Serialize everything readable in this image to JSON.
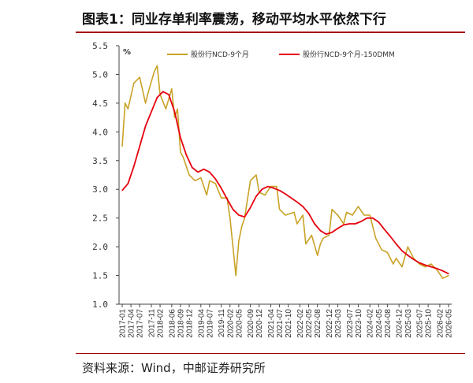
{
  "header": {
    "title": "图表1：同业存单利率震荡，移动平均水平依然下行"
  },
  "footer": {
    "source": "资料来源：Wind，中邮证券研究所"
  },
  "chart_data": {
    "type": "line",
    "title": "图表1：同业存单利率震荡，移动平均水平依然下行",
    "ylabel": "%",
    "ylim": [
      1.0,
      5.5
    ],
    "yticks": [
      "1.0",
      "1.5",
      "2.0",
      "2.5",
      "3.0",
      "3.5",
      "4.0",
      "4.5",
      "5.0",
      "5.5"
    ],
    "grid": false,
    "legend_position": "top",
    "x_categories": [
      "2017-01",
      "2017-04",
      "2017-07",
      "2017-11",
      "2018-02",
      "2018-06",
      "2018-09",
      "2018-12",
      "2019-04",
      "2019-07",
      "2019-11",
      "2020-02",
      "2020-05",
      "2020-09",
      "2020-12",
      "2021-04",
      "2021-07",
      "2021-10",
      "2022-02",
      "2022-05",
      "2022-08",
      "2022-12",
      "2023-03",
      "2023-07",
      "2023-10",
      "2024-02",
      "2024-05",
      "2024-08",
      "2024-12",
      "2025-03",
      "2025-07",
      "2025-10",
      "2026-02",
      "2026-05"
    ],
    "series": [
      {
        "name": "股份行NCD-9个月",
        "color": "#c9a227",
        "x": [
          "2017-01",
          "2017-02",
          "2017-03",
          "2017-05",
          "2017-07",
          "2017-09",
          "2017-10",
          "2017-12",
          "2018-01",
          "2018-02",
          "2018-04",
          "2018-06",
          "2018-07",
          "2018-08",
          "2018-09",
          "2018-10",
          "2018-12",
          "2019-02",
          "2019-04",
          "2019-06",
          "2019-07",
          "2019-09",
          "2019-11",
          "2020-01",
          "2020-02",
          "2020-03",
          "2020-04",
          "2020-05",
          "2020-06",
          "2020-07",
          "2020-09",
          "2020-11",
          "2020-12",
          "2021-02",
          "2021-04",
          "2021-06",
          "2021-07",
          "2021-09",
          "2021-12",
          "2022-01",
          "2022-03",
          "2022-04",
          "2022-06",
          "2022-08",
          "2022-09",
          "2022-10",
          "2022-12",
          "2023-01",
          "2023-03",
          "2023-05",
          "2023-06",
          "2023-08",
          "2023-10",
          "2023-12",
          "2024-02",
          "2024-04",
          "2024-06",
          "2024-08",
          "2024-10",
          "2024-11",
          "2025-01",
          "2025-03",
          "2025-05",
          "2025-07",
          "2025-09",
          "2025-11",
          "2026-01",
          "2026-03",
          "2026-05"
        ],
        "values": [
          3.75,
          4.5,
          4.4,
          4.85,
          4.95,
          4.5,
          4.7,
          5.05,
          5.15,
          4.65,
          4.4,
          4.75,
          4.25,
          4.4,
          3.65,
          3.55,
          3.25,
          3.15,
          3.2,
          2.9,
          3.15,
          3.1,
          2.85,
          2.85,
          2.5,
          2.0,
          1.5,
          2.1,
          2.35,
          2.5,
          3.15,
          3.25,
          2.95,
          2.9,
          3.05,
          3.05,
          2.65,
          2.55,
          2.6,
          2.4,
          2.55,
          2.05,
          2.2,
          1.85,
          2.05,
          2.15,
          2.2,
          2.65,
          2.55,
          2.4,
          2.6,
          2.55,
          2.7,
          2.55,
          2.55,
          2.15,
          1.95,
          1.9,
          1.7,
          1.8,
          1.65,
          2.0,
          1.8,
          1.7,
          1.65,
          1.7,
          1.6,
          1.45,
          1.5
        ]
      },
      {
        "name": "股份行NCD-9个月-150DMM",
        "color": "#e6000e",
        "x": [
          "2017-01",
          "2017-03",
          "2017-05",
          "2017-07",
          "2017-09",
          "2017-11",
          "2018-01",
          "2018-03",
          "2018-05",
          "2018-07",
          "2018-09",
          "2018-11",
          "2019-01",
          "2019-03",
          "2019-05",
          "2019-07",
          "2019-09",
          "2019-11",
          "2020-01",
          "2020-03",
          "2020-05",
          "2020-07",
          "2020-09",
          "2020-11",
          "2021-01",
          "2021-03",
          "2021-05",
          "2021-07",
          "2021-09",
          "2021-11",
          "2022-01",
          "2022-03",
          "2022-05",
          "2022-07",
          "2022-09",
          "2022-11",
          "2023-01",
          "2023-03",
          "2023-05",
          "2023-07",
          "2023-09",
          "2023-11",
          "2024-01",
          "2024-03",
          "2024-05",
          "2024-07",
          "2024-09",
          "2024-11",
          "2025-01",
          "2025-03",
          "2025-05",
          "2025-07",
          "2025-09",
          "2025-11",
          "2026-01",
          "2026-03",
          "2026-05"
        ],
        "values": [
          2.98,
          3.1,
          3.4,
          3.75,
          4.1,
          4.35,
          4.6,
          4.7,
          4.65,
          4.35,
          3.9,
          3.6,
          3.38,
          3.3,
          3.35,
          3.3,
          3.18,
          3.02,
          2.83,
          2.65,
          2.55,
          2.52,
          2.68,
          2.88,
          3.0,
          3.05,
          3.02,
          2.98,
          2.92,
          2.85,
          2.78,
          2.7,
          2.58,
          2.4,
          2.28,
          2.22,
          2.25,
          2.32,
          2.38,
          2.4,
          2.4,
          2.44,
          2.5,
          2.5,
          2.43,
          2.3,
          2.18,
          2.05,
          1.93,
          1.85,
          1.78,
          1.72,
          1.68,
          1.65,
          1.62,
          1.58,
          1.53
        ]
      }
    ]
  }
}
